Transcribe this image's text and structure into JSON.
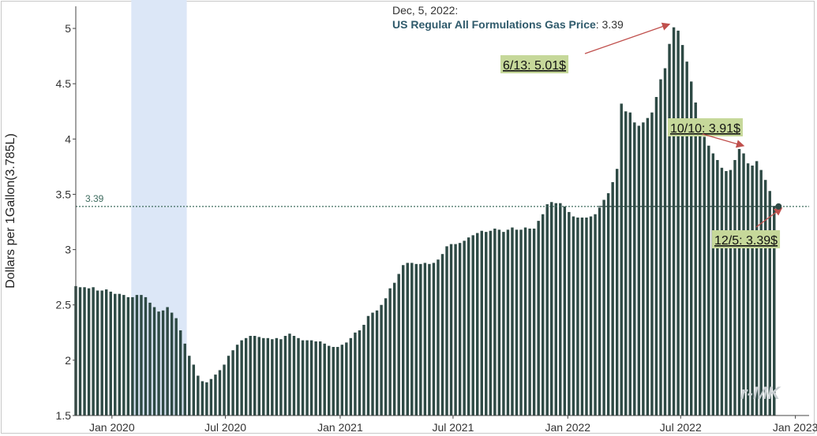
{
  "chart_data": {
    "type": "bar",
    "ylabel": "Dollars per 1Gallon(3.785L)",
    "ylim": [
      1.5,
      5.2
    ],
    "yticks": [
      "1.5",
      "2",
      "2.5",
      "3",
      "3.5",
      "4",
      "4.5",
      "5"
    ],
    "xlim": [
      "2019-11-04",
      "2023-01-23"
    ],
    "xticks": [
      {
        "date": "2020-01-01",
        "label": "Jan 2020"
      },
      {
        "date": "2020-07-01",
        "label": "Jul 2020"
      },
      {
        "date": "2021-01-01",
        "label": "Jan 2021"
      },
      {
        "date": "2021-07-01",
        "label": "Jul 2021"
      },
      {
        "date": "2022-01-01",
        "label": "Jan 2022"
      },
      {
        "date": "2022-07-01",
        "label": "Jul 2022"
      },
      {
        "date": "2023-01-01",
        "label": "Jan 2023"
      }
    ],
    "start_date": "2019-11-04",
    "interval_days": 7,
    "series": [
      {
        "values": [
          2.67,
          2.66,
          2.66,
          2.65,
          2.66,
          2.63,
          2.63,
          2.64,
          2.62,
          2.6,
          2.6,
          2.59,
          2.57,
          2.57,
          2.59,
          2.59,
          2.57,
          2.52,
          2.48,
          2.44,
          2.45,
          2.48,
          2.43,
          2.38,
          2.27,
          2.15,
          2.04,
          1.96,
          1.86,
          1.81,
          1.8,
          1.83,
          1.87,
          1.91,
          1.96,
          2.04,
          2.09,
          2.14,
          2.18,
          2.2,
          2.22,
          2.22,
          2.21,
          2.2,
          2.2,
          2.19,
          2.2,
          2.19,
          2.22,
          2.24,
          2.22,
          2.2,
          2.18,
          2.18,
          2.18,
          2.17,
          2.17,
          2.15,
          2.13,
          2.12,
          2.12,
          2.14,
          2.16,
          2.2,
          2.25,
          2.27,
          2.32,
          2.4,
          2.43,
          2.45,
          2.5,
          2.56,
          2.65,
          2.7,
          2.78,
          2.86,
          2.88,
          2.88,
          2.87,
          2.87,
          2.88,
          2.87,
          2.88,
          2.91,
          2.96,
          3.03,
          3.05,
          3.05,
          3.06,
          3.08,
          3.11,
          3.13,
          3.15,
          3.17,
          3.16,
          3.17,
          3.19,
          3.18,
          3.16,
          3.18,
          3.2,
          3.18,
          3.18,
          3.2,
          3.19,
          3.19,
          3.26,
          3.32,
          3.41,
          3.43,
          3.42,
          3.42,
          3.39,
          3.34,
          3.3,
          3.29,
          3.29,
          3.29,
          3.3,
          3.32,
          3.38,
          3.45,
          3.51,
          3.61,
          3.73,
          4.32,
          4.25,
          4.24,
          4.15,
          4.12,
          4.15,
          4.19,
          4.24,
          4.38,
          4.54,
          4.64,
          4.86,
          5.01,
          4.98,
          4.85,
          4.7,
          4.52,
          4.33,
          4.17,
          4.02,
          3.94,
          3.87,
          3.81,
          3.74,
          3.71,
          3.72,
          3.81,
          3.91,
          3.87,
          3.78,
          3.76,
          3.8,
          3.72,
          3.63,
          3.53,
          3.39
        ]
      }
    ],
    "recession_band": {
      "start": "2020-02-01",
      "end": "2020-04-30",
      "color": "#dce7f7"
    },
    "bar_color": "#2e4a45",
    "reference_line": {
      "y": 3.39,
      "label": "3.39",
      "color": "#3d6b5e"
    },
    "header": {
      "date": "Dec, 5, 2022:",
      "series_name": "US Regular All Formulations Gas Price",
      "value_text": ": 3.39"
    },
    "annotations": [
      {
        "label": "6/13: 5.01$",
        "date": "2022-06-13",
        "value": 5.01
      },
      {
        "label": "10/10: 3.91$",
        "date": "2022-10-10",
        "value": 3.91
      },
      {
        "label": "12/5: 3.39$",
        "date": "2022-12-05",
        "value": 3.39
      }
    ],
    "annotation_bg": "#c6d89a",
    "arrow_color": "#c0504d",
    "watermark": "r-MK",
    "grid": false
  }
}
